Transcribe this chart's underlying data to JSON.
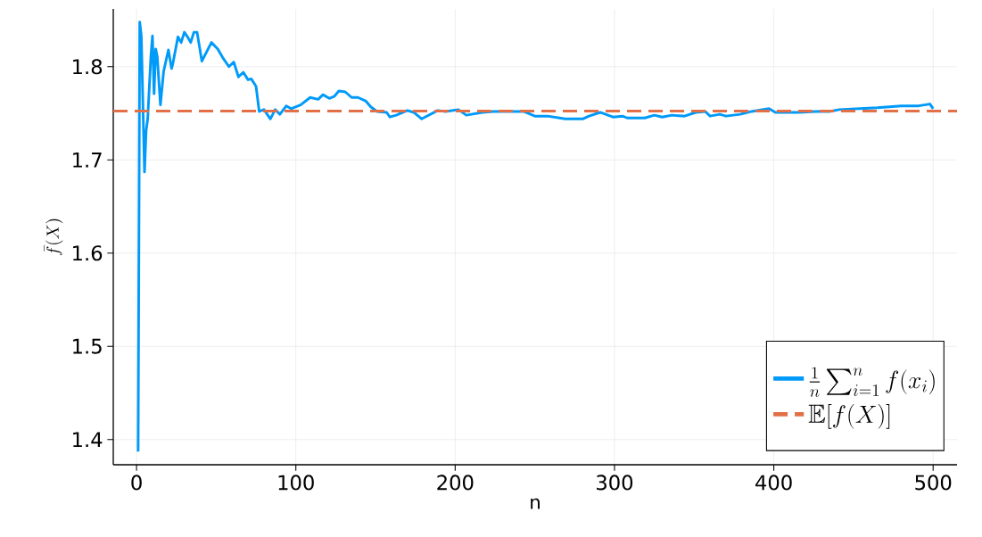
{
  "chart_data": {
    "type": "line",
    "xlabel": "n",
    "ylabel": "\\bar{f}(X)",
    "series": [
      {
        "name": "\\frac{1}{n}\\sum_{i=1}^{n} f(x_i)",
        "color": "#009af9",
        "x": [
          1,
          2,
          3,
          5,
          6,
          7,
          9,
          10,
          11,
          12,
          13,
          15,
          17,
          20,
          22,
          23,
          26,
          28,
          30,
          32,
          34,
          36,
          38,
          41,
          44,
          47,
          51,
          54,
          58,
          61,
          64,
          67,
          70,
          72,
          75,
          77,
          80,
          84,
          87,
          90,
          94,
          97,
          103,
          109,
          114,
          117,
          121,
          124,
          127,
          131,
          135,
          139,
          144,
          147,
          151,
          157,
          159,
          163,
          170,
          174,
          179,
          189,
          194,
          202,
          207,
          217,
          224,
          235,
          243,
          250,
          258,
          269,
          280,
          284,
          291,
          299,
          305,
          308,
          319,
          325,
          330,
          336,
          344,
          351,
          357,
          360,
          366,
          370,
          379,
          386,
          397,
          401,
          416,
          426,
          435,
          441,
          454,
          465,
          480,
          491,
          498,
          500
        ],
        "values": [
          1.387,
          1.848,
          1.833,
          1.687,
          1.731,
          1.744,
          1.811,
          1.833,
          1.771,
          1.819,
          1.811,
          1.759,
          1.795,
          1.818,
          1.798,
          1.805,
          1.832,
          1.826,
          1.837,
          1.832,
          1.826,
          1.837,
          1.837,
          1.806,
          1.816,
          1.826,
          1.819,
          1.81,
          1.8,
          1.805,
          1.789,
          1.794,
          1.786,
          1.787,
          1.779,
          1.752,
          1.754,
          1.744,
          1.754,
          1.749,
          1.758,
          1.755,
          1.759,
          1.767,
          1.765,
          1.77,
          1.766,
          1.768,
          1.774,
          1.773,
          1.767,
          1.767,
          1.763,
          1.757,
          1.752,
          1.751,
          1.746,
          1.748,
          1.753,
          1.751,
          1.744,
          1.753,
          1.752,
          1.754,
          1.748,
          1.751,
          1.752,
          1.752,
          1.752,
          1.747,
          1.747,
          1.744,
          1.744,
          1.747,
          1.751,
          1.746,
          1.747,
          1.745,
          1.745,
          1.748,
          1.746,
          1.748,
          1.747,
          1.751,
          1.752,
          1.747,
          1.749,
          1.747,
          1.749,
          1.752,
          1.755,
          1.751,
          1.751,
          1.752,
          1.752,
          1.754,
          1.755,
          1.756,
          1.758,
          1.758,
          1.76,
          1.755
        ]
      }
    ],
    "ref_lines": [
      {
        "axis": "y",
        "value": 1.7525,
        "label": "\\mathbb{E}[f(X)]",
        "color": "#e26f46",
        "line_style": "dashed"
      }
    ],
    "xlim": [
      -14.6,
      515
    ],
    "ylim": [
      1.373,
      1.862
    ],
    "xticks": [
      0,
      100,
      200,
      300,
      400,
      500
    ],
    "yticks": [
      1.4,
      1.5,
      1.6,
      1.7,
      1.8
    ],
    "grid": true,
    "legend": "bottom right",
    "line_style": "solid",
    "marker": "none"
  }
}
